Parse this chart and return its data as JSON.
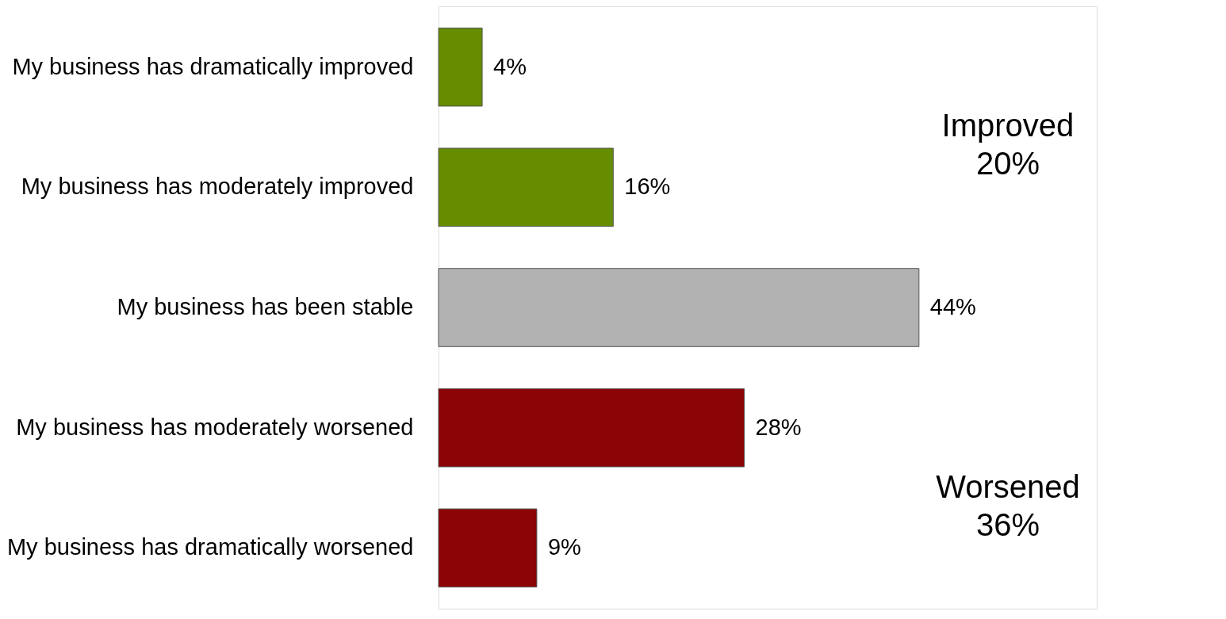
{
  "chart_data": {
    "type": "bar",
    "orientation": "horizontal",
    "categories": [
      "My business has dramatically improved",
      "My business has moderately improved",
      "My business has been stable",
      "My business has moderately worsened",
      "My business has dramatically worsened"
    ],
    "values": [
      4,
      16,
      44,
      28,
      9
    ],
    "colors": [
      "#668c00",
      "#668c00",
      "#b2b2b2",
      "#8b0406",
      "#8b0406"
    ],
    "value_labels": [
      "4%",
      "16%",
      "44%",
      "28%",
      "9%"
    ],
    "annotations": [
      "Improved\n20%",
      "Worsened\n36%"
    ],
    "grid": false
  }
}
